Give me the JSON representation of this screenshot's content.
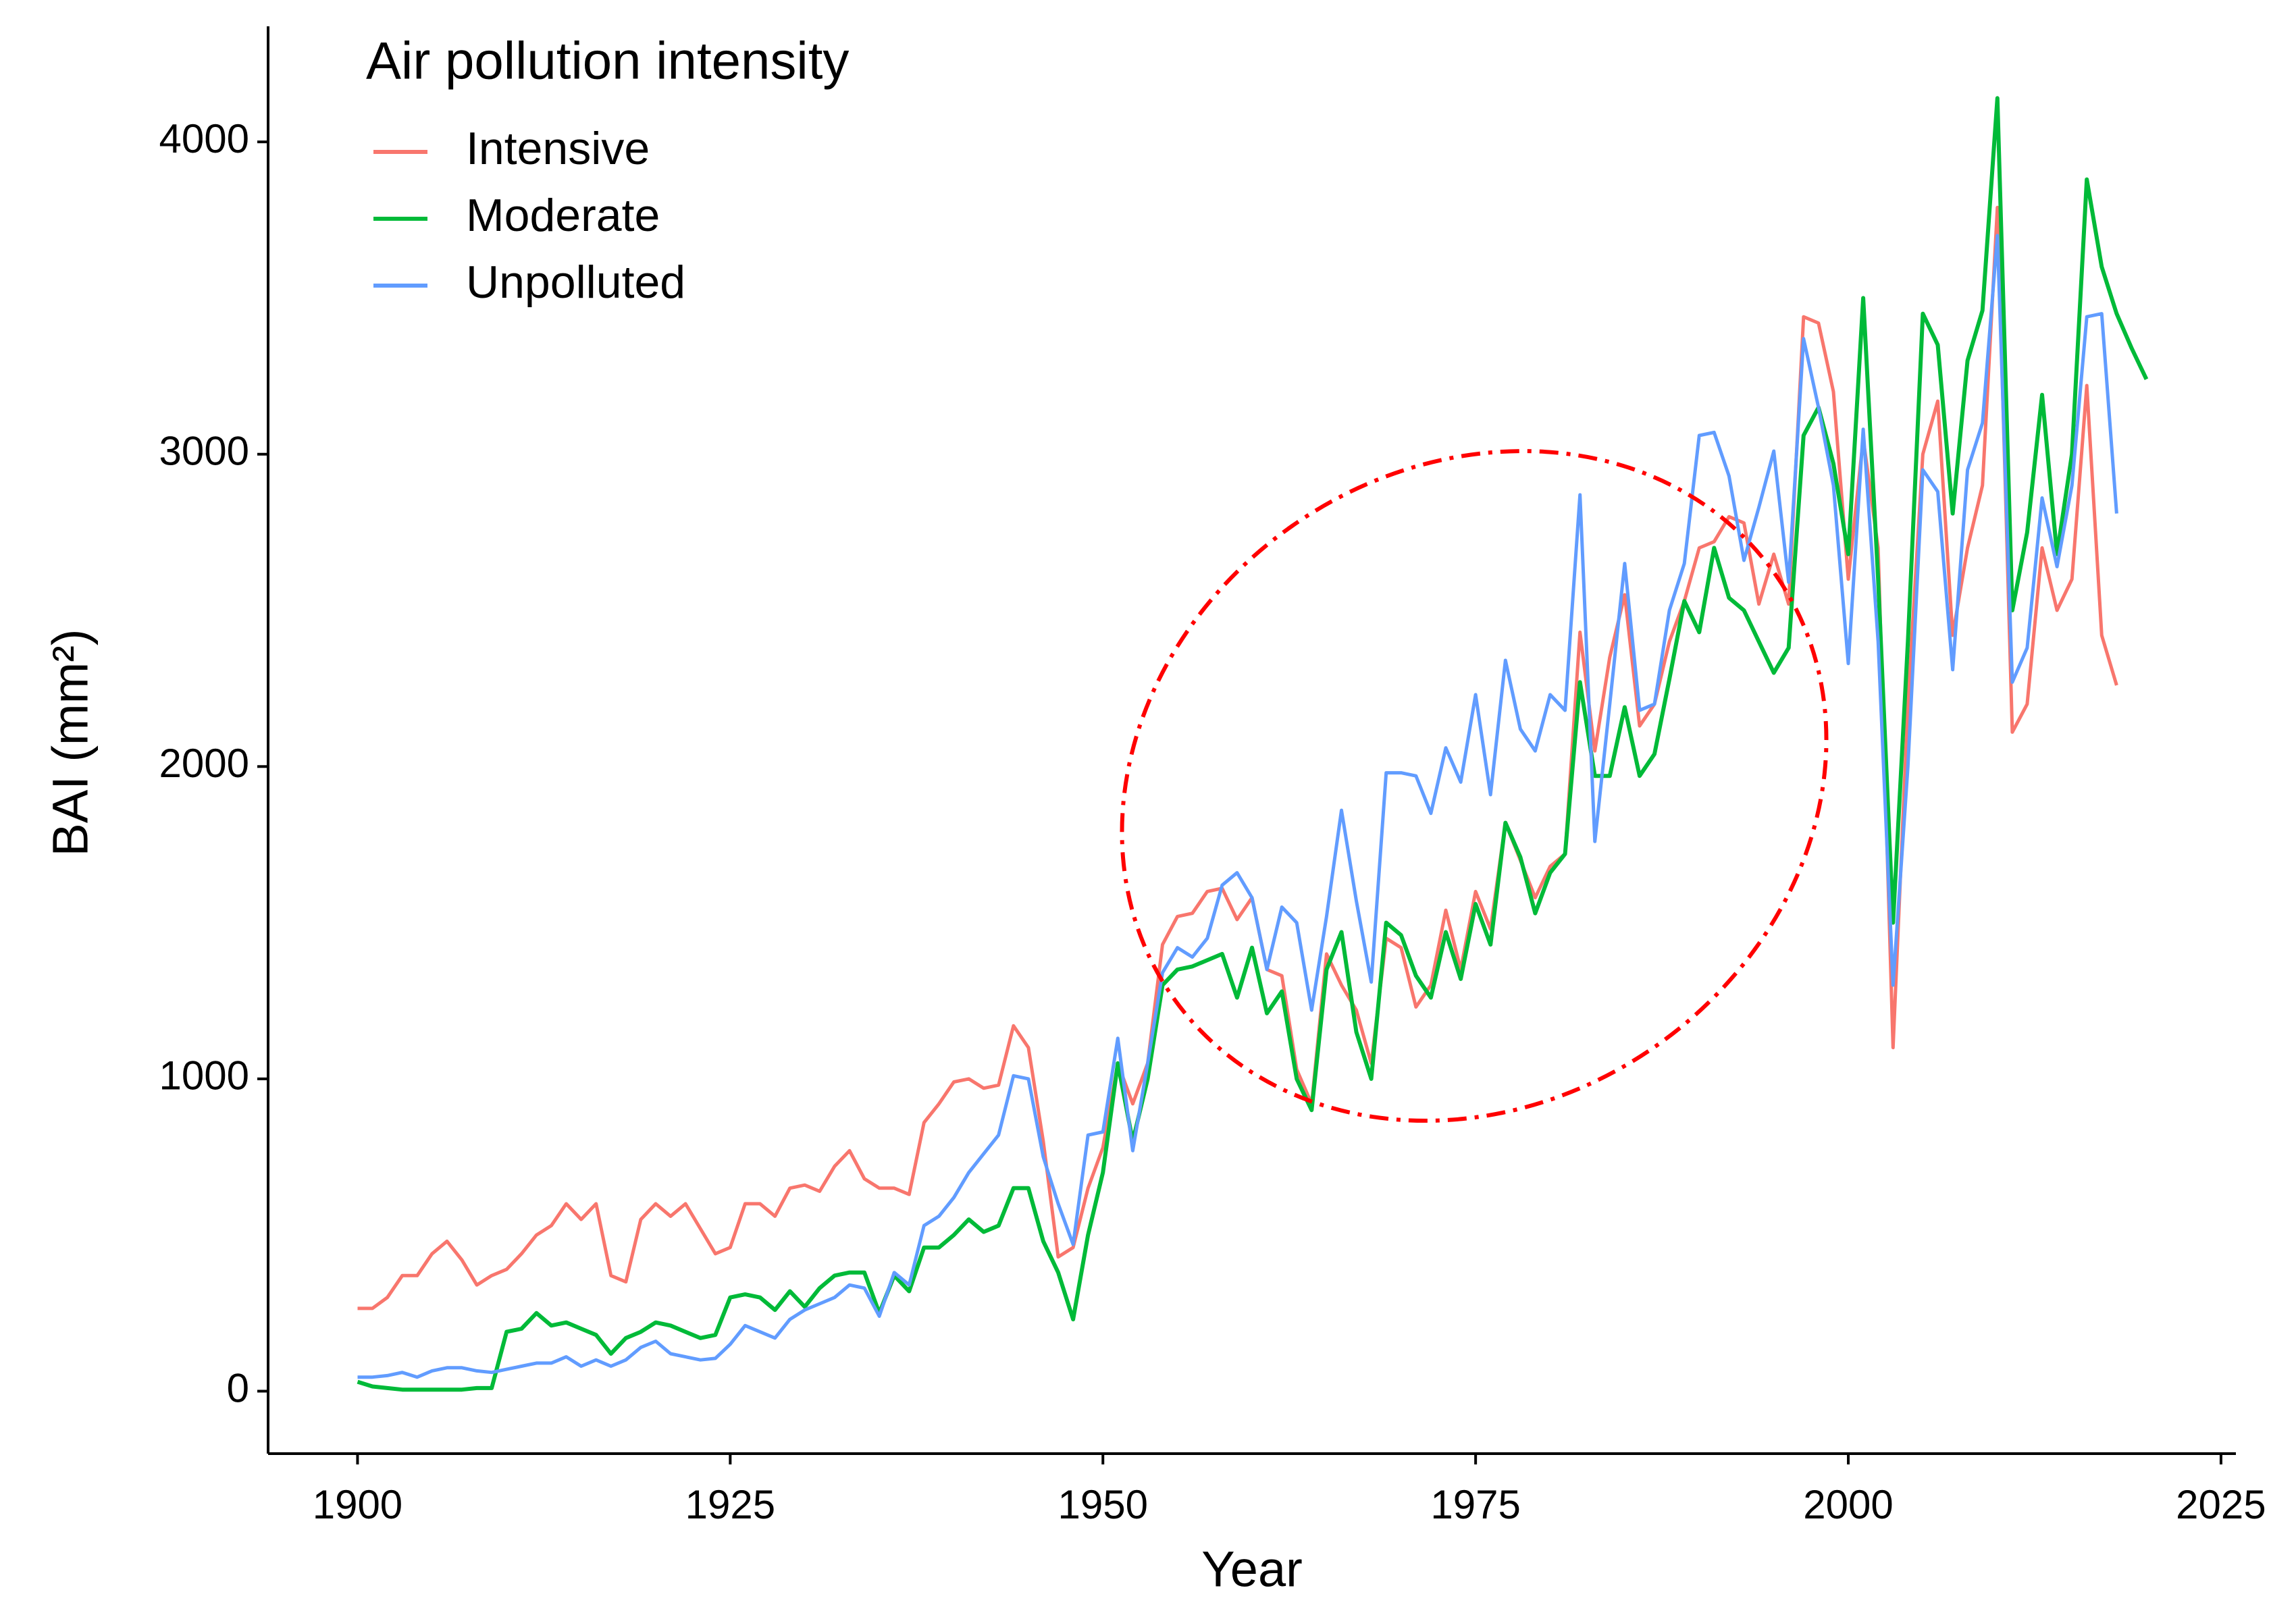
{
  "chart_data": {
    "type": "line",
    "xlabel": "Year",
    "ylabel": "BAI (mm²)",
    "legend_title": "Air pollution intensity",
    "legend": "top-left",
    "grid": false,
    "xlim": [
      1894,
      2026
    ],
    "ylim": [
      -200,
      4370
    ],
    "xticks": [
      1900,
      1925,
      1950,
      1975,
      2000,
      2025
    ],
    "yticks": [
      0,
      1000,
      2000,
      3000,
      4000
    ],
    "x": [
      1900,
      1901,
      1902,
      1903,
      1904,
      1905,
      1906,
      1907,
      1908,
      1909,
      1910,
      1911,
      1912,
      1913,
      1914,
      1915,
      1916,
      1917,
      1918,
      1919,
      1920,
      1921,
      1922,
      1923,
      1924,
      1925,
      1926,
      1927,
      1928,
      1929,
      1930,
      1931,
      1932,
      1933,
      1934,
      1935,
      1936,
      1937,
      1938,
      1939,
      1940,
      1941,
      1942,
      1943,
      1944,
      1945,
      1946,
      1947,
      1948,
      1949,
      1950,
      1951,
      1952,
      1953,
      1954,
      1955,
      1956,
      1957,
      1958,
      1959,
      1960,
      1961,
      1962,
      1963,
      1964,
      1965,
      1966,
      1967,
      1968,
      1969,
      1970,
      1971,
      1972,
      1973,
      1974,
      1975,
      1976,
      1977,
      1978,
      1979,
      1980,
      1981,
      1982,
      1983,
      1984,
      1985,
      1986,
      1987,
      1988,
      1989,
      1990,
      1991,
      1992,
      1993,
      1994,
      1995,
      1996,
      1997,
      1998,
      1999,
      2000,
      2001,
      2002,
      2003,
      2004,
      2005,
      2006,
      2007,
      2008,
      2009,
      2010,
      2011,
      2012,
      2013,
      2014,
      2015,
      2016,
      2017,
      2018,
      2019,
      2020
    ],
    "series": [
      {
        "name": "Intensive",
        "color": "#F8766D",
        "values": [
          265,
          265,
          300,
          370,
          370,
          440,
          480,
          420,
          340,
          370,
          390,
          440,
          500,
          530,
          600,
          550,
          600,
          370,
          350,
          550,
          600,
          560,
          600,
          520,
          440,
          460,
          600,
          600,
          560,
          650,
          660,
          640,
          720,
          770,
          680,
          650,
          650,
          630,
          860,
          920,
          990,
          1000,
          970,
          980,
          1170,
          1100,
          800,
          430,
          460,
          650,
          780,
          1050,
          920,
          1050,
          1430,
          1520,
          1530,
          1600,
          1610,
          1510,
          1580,
          1350,
          1330,
          1030,
          920,
          1400,
          1300,
          1220,
          1050,
          1450,
          1420,
          1230,
          1300,
          1540,
          1350,
          1600,
          1480,
          1820,
          1700,
          1580,
          1680,
          1720,
          2430,
          2050,
          2350,
          2550,
          2130,
          2200,
          2400,
          2530,
          2700,
          2720,
          2800,
          2780,
          2520,
          2680,
          2520,
          3440,
          3420,
          3200,
          2600,
          3050,
          2700,
          1100,
          2200,
          3000,
          3170,
          2420,
          2700,
          2900,
          3790,
          2110,
          2200,
          2700,
          2500,
          2600,
          3220,
          2420,
          2260,
          null,
          null
        ]
      },
      {
        "name": "Moderate",
        "color": "#00BA38",
        "values": [
          30,
          15,
          10,
          5,
          5,
          5,
          5,
          5,
          10,
          10,
          190,
          200,
          250,
          210,
          220,
          200,
          180,
          120,
          170,
          190,
          220,
          210,
          190,
          170,
          180,
          300,
          310,
          300,
          260,
          320,
          270,
          330,
          370,
          380,
          380,
          250,
          370,
          320,
          460,
          460,
          500,
          550,
          510,
          530,
          650,
          650,
          480,
          380,
          230,
          500,
          700,
          1050,
          800,
          1000,
          1300,
          1350,
          1360,
          1380,
          1400,
          1260,
          1420,
          1210,
          1280,
          1000,
          900,
          1350,
          1470,
          1150,
          1000,
          1500,
          1460,
          1330,
          1260,
          1470,
          1320,
          1560,
          1430,
          1820,
          1710,
          1530,
          1660,
          1720,
          2270,
          1970,
          1970,
          2190,
          1970,
          2040,
          2280,
          2530,
          2430,
          2700,
          2540,
          2500,
          2400,
          2300,
          2380,
          3060,
          3150,
          2970,
          2680,
          3500,
          2600,
          1500,
          2400,
          3450,
          3350,
          2810,
          3300,
          3460,
          4140,
          2500,
          2750,
          3190,
          2680,
          3000,
          3880,
          3600,
          3450,
          3340,
          3240
        ]
      },
      {
        "name": "Unpolluted",
        "color": "#619CFF",
        "values": [
          45,
          45,
          50,
          60,
          45,
          65,
          75,
          75,
          65,
          60,
          70,
          80,
          90,
          90,
          110,
          80,
          100,
          80,
          100,
          140,
          160,
          120,
          110,
          100,
          105,
          150,
          210,
          190,
          170,
          230,
          260,
          280,
          300,
          340,
          330,
          240,
          380,
          340,
          530,
          560,
          620,
          700,
          760,
          820,
          1010,
          1000,
          750,
          600,
          470,
          820,
          830,
          1130,
          770,
          1050,
          1340,
          1420,
          1390,
          1450,
          1620,
          1660,
          1580,
          1350,
          1550,
          1500,
          1220,
          1520,
          1860,
          1570,
          1310,
          1980,
          1980,
          1970,
          1850,
          2060,
          1950,
          2230,
          1910,
          2340,
          2120,
          2050,
          2230,
          2180,
          2870,
          1760,
          2200,
          2650,
          2180,
          2200,
          2500,
          2650,
          3060,
          3070,
          2930,
          2660,
          2830,
          3010,
          2590,
          3370,
          3150,
          2900,
          2330,
          3080,
          2400,
          1300,
          2000,
          2950,
          2880,
          2310,
          2950,
          3100,
          3700,
          2270,
          2380,
          2860,
          2640,
          2900,
          3440,
          3450,
          2810,
          null,
          null
        ]
      }
    ]
  }
}
